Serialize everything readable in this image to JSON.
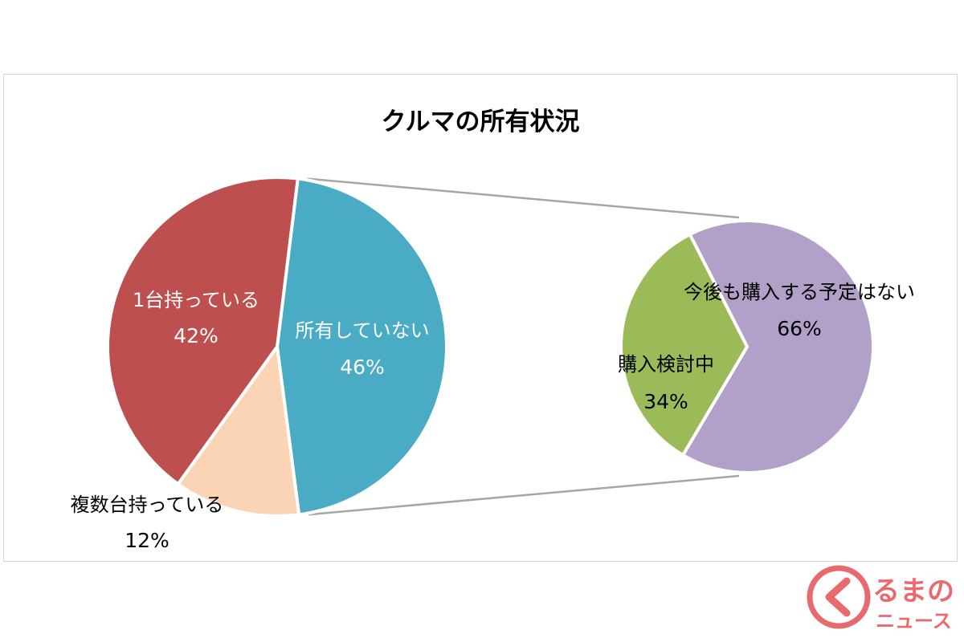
{
  "chart_data": [
    {
      "type": "pie",
      "title": "クルマの所有状況",
      "categories": [
        "1台持っている",
        "複数台持っている",
        "所有していない"
      ],
      "values": [
        42,
        12,
        46
      ],
      "value_labels": [
        "42%",
        "12%",
        "46%"
      ],
      "colors": [
        "#bd4f4e",
        "#fbd4b6",
        "#4aabc5"
      ],
      "label_colors": [
        "#ffffff",
        "#000000",
        "#ffffff"
      ]
    },
    {
      "type": "pie",
      "categories": [
        "購入検討中",
        "今後も購入する予定はない"
      ],
      "values": [
        34,
        66
      ],
      "value_labels": [
        "34%",
        "66%"
      ],
      "colors": [
        "#9bbb59",
        "#b1a1c8"
      ],
      "label_colors": [
        "#000000",
        "#000000"
      ]
    }
  ],
  "branding": {
    "logo_text_top": "るまの",
    "logo_text_bottom": "ニュース",
    "logo_color": "#e86a6f"
  }
}
